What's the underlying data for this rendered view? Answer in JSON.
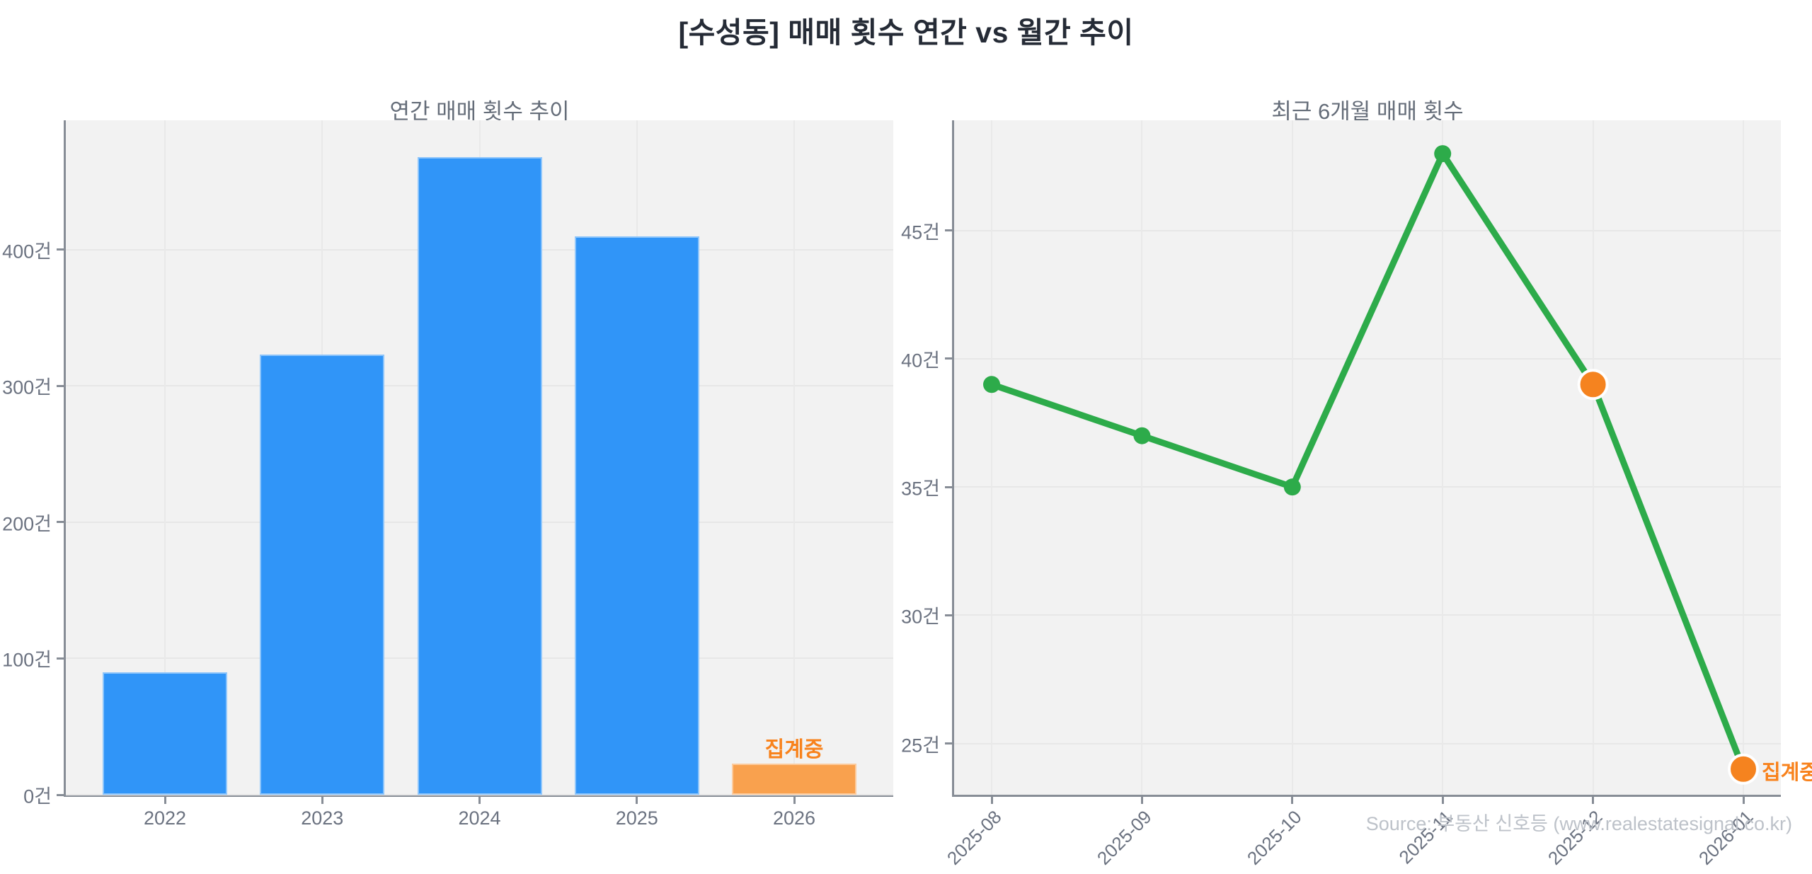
{
  "title": "[수성동] 매매 횟수 연간 vs 월간 추이",
  "watermark": "Source: 부동산 신호등 (www.realestatesignal.co.kr)",
  "colors": {
    "bar_blue": "#3095F8",
    "bar_orange": "#F9A14E",
    "line_green": "#2DAB4A",
    "point_green": "#2DAB4A",
    "point_orange": "#F5831F",
    "pending_text_orange": "#F8821C",
    "plot_background": "#f2f2f2",
    "axis_gray": "#878d96",
    "tick_label_gray": "#6b7280"
  },
  "chart_data": [
    {
      "type": "bar",
      "title": "연간 매매 횟수 추이",
      "categories": [
        "2022",
        "2023",
        "2024",
        "2025",
        "2026"
      ],
      "values": [
        90,
        323,
        468,
        410,
        23
      ],
      "unit": "건",
      "ylim": [
        0,
        495
      ],
      "yticks": {
        "values": [
          0,
          100,
          200,
          300,
          400
        ],
        "labels": [
          "0건",
          "100건",
          "200건",
          "300건",
          "400건"
        ]
      },
      "grid": true,
      "legend": "none",
      "highlight": {
        "index": 4,
        "label": "집계중"
      }
    },
    {
      "type": "line",
      "title": "최근 6개월 매매 횟수",
      "x": [
        "2025-08",
        "2025-09",
        "2025-10",
        "2025-11",
        "2025-12",
        "2026-01"
      ],
      "values": [
        39,
        37,
        35,
        48,
        39,
        24
      ],
      "unit": "건",
      "ylim": [
        23,
        49.3
      ],
      "yticks": {
        "values": [
          25,
          30,
          35,
          40,
          45
        ],
        "labels": [
          "25건",
          "30건",
          "35건",
          "40건",
          "45건"
        ]
      },
      "grid": true,
      "legend": "none",
      "pending_indices": [
        4,
        5
      ],
      "annotation": {
        "text": "집계중",
        "at_index": 5
      }
    }
  ]
}
